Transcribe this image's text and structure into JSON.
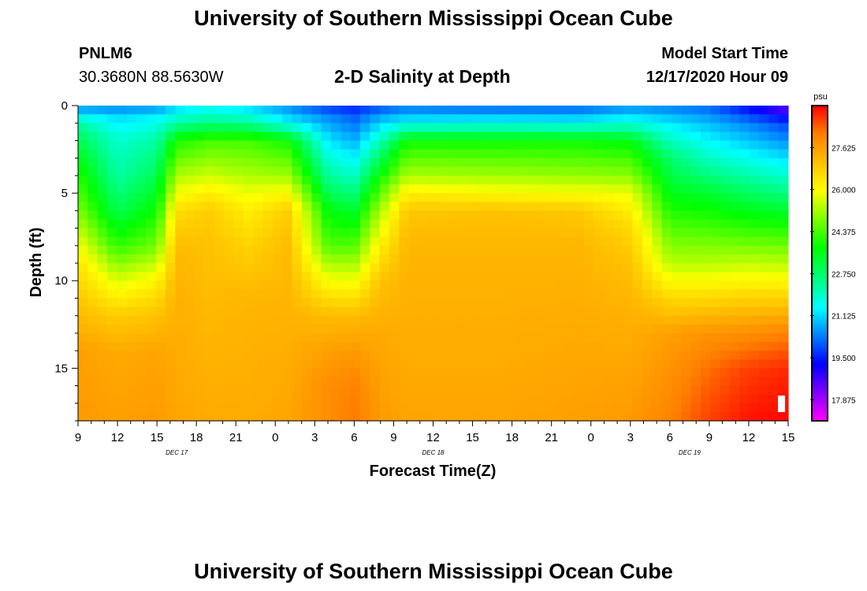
{
  "header": {
    "title": "University of Southern Mississippi Ocean Cube",
    "footer_title": "University of Southern Mississippi Ocean Cube",
    "station": "PNLM6",
    "coords": "30.3680N 88.5630W",
    "plot_title": "2-D Salinity at Depth",
    "start_label": "Model Start Time",
    "start_value": "12/17/2020 Hour 09"
  },
  "chart_data": {
    "type": "heatmap",
    "title": "2-D Salinity at Depth",
    "xlabel": "Forecast Time(Z)",
    "ylabel": "Depth (ft)",
    "x_ticks": [
      "9",
      "12",
      "15",
      "18",
      "21",
      "0",
      "3",
      "6",
      "9",
      "12",
      "15",
      "18",
      "21",
      "0",
      "3",
      "6",
      "9",
      "12",
      "15"
    ],
    "x_range_hours": [
      0,
      54
    ],
    "x_hour_step": 3,
    "date_labels": [
      {
        "label": "DEC 17",
        "hour": 7.5
      },
      {
        "label": "DEC 18",
        "hour": 27
      },
      {
        "label": "DEC 19",
        "hour": 46.5
      }
    ],
    "y_ticks": [
      0,
      5,
      10,
      15
    ],
    "ylim": [
      0,
      18
    ],
    "colorbar": {
      "unit": "psu",
      "min": 17.06,
      "max": 29.25,
      "ticks": [
        "27.625",
        "26.000",
        "24.375",
        "22.750",
        "21.125",
        "19.500",
        "17.875"
      ],
      "tick_values": [
        27.625,
        26.0,
        24.375,
        22.75,
        21.125,
        19.5,
        17.875
      ]
    },
    "series": [
      {
        "hour": 0,
        "profile": [
          [
            0,
            20.2
          ],
          [
            0.5,
            21.5
          ],
          [
            1.5,
            22.8
          ],
          [
            3.5,
            23.8
          ],
          [
            6,
            24.8
          ],
          [
            9,
            26.4
          ],
          [
            11,
            26.9
          ],
          [
            14,
            27.6
          ],
          [
            18,
            27.7
          ]
        ]
      },
      {
        "hour": 3,
        "profile": [
          [
            0,
            20.2
          ],
          [
            0.5,
            21.1
          ],
          [
            2,
            21.9
          ],
          [
            4,
            22.3
          ],
          [
            6,
            23.0
          ],
          [
            8,
            24.1
          ],
          [
            10,
            25.6
          ],
          [
            12,
            26.8
          ],
          [
            14,
            27.4
          ],
          [
            18,
            27.6
          ]
        ]
      },
      {
        "hour": 6,
        "profile": [
          [
            0,
            20.3
          ],
          [
            0.5,
            21.3
          ],
          [
            2,
            22.3
          ],
          [
            4,
            23.0
          ],
          [
            6,
            23.8
          ],
          [
            8,
            24.7
          ],
          [
            10,
            26.1
          ],
          [
            12,
            27.0
          ],
          [
            14,
            27.5
          ],
          [
            18,
            27.7
          ]
        ]
      },
      {
        "hour": 7.5,
        "profile": [
          [
            0,
            21.0
          ],
          [
            1,
            22.3
          ],
          [
            2,
            23.9
          ],
          [
            4,
            25.2
          ],
          [
            6,
            26.5
          ],
          [
            8,
            27.1
          ],
          [
            11,
            27.3
          ],
          [
            18,
            27.5
          ]
        ]
      },
      {
        "hour": 10,
        "profile": [
          [
            0,
            21.4
          ],
          [
            1,
            22.6
          ],
          [
            2,
            24.3
          ],
          [
            4,
            25.5
          ],
          [
            5,
            26.2
          ],
          [
            6,
            26.8
          ],
          [
            8,
            27.0
          ],
          [
            18,
            27.4
          ]
        ]
      },
      {
        "hour": 13,
        "profile": [
          [
            0,
            21.0
          ],
          [
            1,
            22.4
          ],
          [
            2,
            24.3
          ],
          [
            4,
            25.2
          ],
          [
            5,
            25.8
          ],
          [
            6,
            26.2
          ],
          [
            8,
            26.7
          ],
          [
            11,
            27.2
          ],
          [
            18,
            27.4
          ]
        ]
      },
      {
        "hour": 16,
        "profile": [
          [
            0,
            20.4
          ],
          [
            1,
            21.5
          ],
          [
            2,
            23.8
          ],
          [
            4,
            25.1
          ],
          [
            5,
            26.0
          ],
          [
            6,
            26.8
          ],
          [
            8,
            27.1
          ],
          [
            18,
            27.5
          ]
        ]
      },
      {
        "hour": 19,
        "profile": [
          [
            0,
            19.6
          ],
          [
            0.5,
            20.4
          ],
          [
            2,
            21.3
          ],
          [
            4,
            22.4
          ],
          [
            6,
            23.6
          ],
          [
            8,
            24.4
          ],
          [
            10,
            25.9
          ],
          [
            12,
            27.1
          ],
          [
            14,
            27.6
          ],
          [
            16,
            27.9
          ],
          [
            18,
            27.9
          ]
        ]
      },
      {
        "hour": 21,
        "profile": [
          [
            0,
            19.4
          ],
          [
            0.5,
            20.0
          ],
          [
            2,
            20.8
          ],
          [
            4,
            22.0
          ],
          [
            6,
            23.3
          ],
          [
            8,
            24.4
          ],
          [
            10,
            25.8
          ],
          [
            12,
            27.1
          ],
          [
            14,
            27.7
          ],
          [
            16,
            28.1
          ],
          [
            18,
            28.2
          ]
        ]
      },
      {
        "hour": 23,
        "profile": [
          [
            0,
            19.8
          ],
          [
            0.5,
            20.6
          ],
          [
            2,
            22.1
          ],
          [
            4,
            23.8
          ],
          [
            6,
            25.2
          ],
          [
            8,
            26.2
          ],
          [
            10,
            27.0
          ],
          [
            13,
            27.4
          ],
          [
            18,
            27.7
          ]
        ]
      },
      {
        "hour": 25,
        "profile": [
          [
            0,
            20.2
          ],
          [
            1,
            21.5
          ],
          [
            2,
            23.8
          ],
          [
            4,
            25.2
          ],
          [
            5,
            26.2
          ],
          [
            6,
            26.9
          ],
          [
            8,
            27.2
          ],
          [
            18,
            27.5
          ]
        ]
      },
      {
        "hour": 32,
        "profile": [
          [
            0,
            20.0
          ],
          [
            1,
            21.6
          ],
          [
            2,
            23.8
          ],
          [
            4,
            25.1
          ],
          [
            5,
            26.0
          ],
          [
            6,
            27.0
          ],
          [
            8,
            27.2
          ],
          [
            18,
            27.5
          ]
        ]
      },
      {
        "hour": 38,
        "profile": [
          [
            0,
            20.0
          ],
          [
            1,
            21.5
          ],
          [
            2,
            23.8
          ],
          [
            4,
            25.0
          ],
          [
            5,
            25.9
          ],
          [
            6,
            26.9
          ],
          [
            8,
            27.2
          ],
          [
            18,
            27.6
          ]
        ]
      },
      {
        "hour": 42,
        "profile": [
          [
            0,
            20.4
          ],
          [
            1,
            21.8
          ],
          [
            2,
            23.6
          ],
          [
            4,
            24.9
          ],
          [
            5,
            25.8
          ],
          [
            7,
            26.6
          ],
          [
            9,
            27.0
          ],
          [
            12,
            27.3
          ],
          [
            18,
            27.7
          ]
        ]
      },
      {
        "hour": 45,
        "profile": [
          [
            0,
            20.3
          ],
          [
            1,
            21.3
          ],
          [
            3,
            22.8
          ],
          [
            5,
            23.5
          ],
          [
            7,
            24.4
          ],
          [
            9,
            25.3
          ],
          [
            11,
            26.6
          ],
          [
            13,
            27.6
          ],
          [
            18,
            28.1
          ]
        ]
      },
      {
        "hour": 48,
        "profile": [
          [
            0,
            20.1
          ],
          [
            1,
            20.9
          ],
          [
            3,
            22.0
          ],
          [
            5,
            23.3
          ],
          [
            7,
            24.3
          ],
          [
            9,
            25.3
          ],
          [
            11,
            26.6
          ],
          [
            13,
            27.8
          ],
          [
            15,
            28.3
          ],
          [
            18,
            28.7
          ]
        ]
      },
      {
        "hour": 51,
        "profile": [
          [
            0,
            19.2
          ],
          [
            1,
            20.4
          ],
          [
            3,
            21.6
          ],
          [
            5,
            22.9
          ],
          [
            7,
            24.1
          ],
          [
            9,
            25.4
          ],
          [
            11,
            26.7
          ],
          [
            13,
            27.9
          ],
          [
            15,
            28.7
          ],
          [
            18,
            29.1
          ]
        ]
      },
      {
        "hour": 54,
        "profile": [
          [
            0,
            18.2
          ],
          [
            1,
            19.8
          ],
          [
            3,
            21.2
          ],
          [
            5,
            22.6
          ],
          [
            7,
            24.0
          ],
          [
            9,
            25.3
          ],
          [
            11,
            26.7
          ],
          [
            13,
            28.1
          ],
          [
            15,
            28.9
          ],
          [
            18,
            29.2
          ]
        ]
      }
    ]
  },
  "colors": {
    "scale": [
      "#ff00ff",
      "#8000ff",
      "#0000ff",
      "#0080ff",
      "#00ffff",
      "#00ff80",
      "#00ff00",
      "#80ff00",
      "#ffff00",
      "#ffc000",
      "#ff8000",
      "#ff0000"
    ]
  }
}
